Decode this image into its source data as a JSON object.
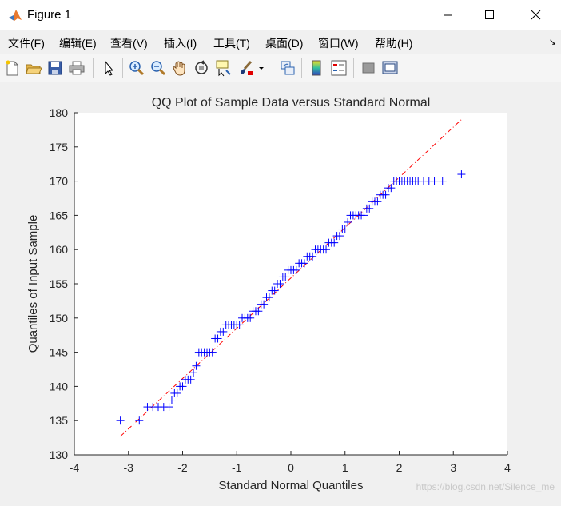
{
  "window": {
    "title": "Figure 1"
  },
  "menu": [
    "文件(F)",
    "编辑(E)",
    "查看(V)",
    "插入(I)",
    "工具(T)",
    "桌面(D)",
    "窗口(W)",
    "帮助(H)"
  ],
  "toolbar_icons": [
    "new-figure-icon",
    "open-file-icon",
    "save-icon",
    "print-icon",
    "pointer-icon",
    "zoom-in-icon",
    "zoom-out-icon",
    "pan-icon",
    "rotate-3d-icon",
    "data-cursor-icon",
    "brush-icon",
    "brush-dropdown-icon",
    "link-plot-icon",
    "colorbar-icon",
    "legend-icon",
    "hide-plot-tools-icon",
    "show-plot-tools-icon"
  ],
  "watermark": "https://blog.csdn.net/Silence_me",
  "colors": {
    "markers": "#0000ff",
    "reference_line": "#ff0000",
    "axes_bg": "#ffffff",
    "figure_bg": "#f0f0f0"
  },
  "chart_data": {
    "type": "scatter",
    "title": "QQ Plot of Sample Data versus Standard Normal",
    "xlabel": "Standard Normal Quantiles",
    "ylabel": "Quantiles of Input Sample",
    "xlim": [
      -4,
      4
    ],
    "ylim": [
      130,
      180
    ],
    "xticks": [
      "-4",
      "-3",
      "-2",
      "-1",
      "0",
      "1",
      "2",
      "3",
      "4"
    ],
    "yticks": [
      "130",
      "135",
      "140",
      "145",
      "150",
      "155",
      "160",
      "165",
      "170",
      "175",
      "180"
    ],
    "marker": "+",
    "grid": false,
    "reference_line": {
      "style": "dash-dot",
      "x": [
        -3.15,
        3.15
      ],
      "y": [
        132.7,
        179
      ]
    },
    "series": [
      {
        "values": [
          [
            -3.15,
            135
          ],
          [
            -2.8,
            135
          ],
          [
            -2.65,
            137
          ],
          [
            -2.55,
            137
          ],
          [
            -2.45,
            137
          ],
          [
            -2.35,
            137
          ],
          [
            -2.25,
            137
          ],
          [
            -2.2,
            138
          ],
          [
            -2.15,
            139
          ],
          [
            -2.1,
            139
          ],
          [
            -2.05,
            140
          ],
          [
            -2.0,
            140
          ],
          [
            -1.95,
            141
          ],
          [
            -1.9,
            141
          ],
          [
            -1.85,
            141
          ],
          [
            -1.8,
            142
          ],
          [
            -1.75,
            143
          ],
          [
            -1.7,
            145
          ],
          [
            -1.65,
            145
          ],
          [
            -1.6,
            145
          ],
          [
            -1.55,
            145
          ],
          [
            -1.5,
            145
          ],
          [
            -1.45,
            145
          ],
          [
            -1.4,
            147
          ],
          [
            -1.35,
            147
          ],
          [
            -1.3,
            148
          ],
          [
            -1.25,
            148
          ],
          [
            -1.2,
            149
          ],
          [
            -1.15,
            149
          ],
          [
            -1.1,
            149
          ],
          [
            -1.05,
            149
          ],
          [
            -1.0,
            149
          ],
          [
            -0.95,
            149
          ],
          [
            -0.9,
            150
          ],
          [
            -0.85,
            150
          ],
          [
            -0.8,
            150
          ],
          [
            -0.75,
            150
          ],
          [
            -0.7,
            151
          ],
          [
            -0.65,
            151
          ],
          [
            -0.6,
            151
          ],
          [
            -0.55,
            152
          ],
          [
            -0.5,
            152
          ],
          [
            -0.45,
            153
          ],
          [
            -0.4,
            153
          ],
          [
            -0.35,
            154
          ],
          [
            -0.3,
            154
          ],
          [
            -0.25,
            155
          ],
          [
            -0.2,
            155
          ],
          [
            -0.15,
            156
          ],
          [
            -0.1,
            156
          ],
          [
            -0.05,
            157
          ],
          [
            0.0,
            157
          ],
          [
            0.05,
            157
          ],
          [
            0.1,
            157
          ],
          [
            0.15,
            158
          ],
          [
            0.2,
            158
          ],
          [
            0.25,
            158
          ],
          [
            0.3,
            159
          ],
          [
            0.35,
            159
          ],
          [
            0.4,
            159
          ],
          [
            0.45,
            160
          ],
          [
            0.5,
            160
          ],
          [
            0.55,
            160
          ],
          [
            0.6,
            160
          ],
          [
            0.65,
            160
          ],
          [
            0.7,
            161
          ],
          [
            0.75,
            161
          ],
          [
            0.8,
            161
          ],
          [
            0.85,
            162
          ],
          [
            0.9,
            162
          ],
          [
            0.95,
            163
          ],
          [
            1.0,
            163
          ],
          [
            1.05,
            164
          ],
          [
            1.1,
            165
          ],
          [
            1.15,
            165
          ],
          [
            1.2,
            165
          ],
          [
            1.25,
            165
          ],
          [
            1.3,
            165
          ],
          [
            1.35,
            165
          ],
          [
            1.4,
            166
          ],
          [
            1.45,
            166
          ],
          [
            1.5,
            167
          ],
          [
            1.55,
            167
          ],
          [
            1.6,
            167
          ],
          [
            1.65,
            168
          ],
          [
            1.7,
            168
          ],
          [
            1.75,
            168
          ],
          [
            1.8,
            169
          ],
          [
            1.85,
            169
          ],
          [
            1.9,
            170
          ],
          [
            1.95,
            170
          ],
          [
            2.0,
            170
          ],
          [
            2.05,
            170
          ],
          [
            2.1,
            170
          ],
          [
            2.15,
            170
          ],
          [
            2.2,
            170
          ],
          [
            2.25,
            170
          ],
          [
            2.3,
            170
          ],
          [
            2.35,
            170
          ],
          [
            2.45,
            170
          ],
          [
            2.55,
            170
          ],
          [
            2.65,
            170
          ],
          [
            2.8,
            170
          ],
          [
            3.15,
            171
          ]
        ]
      }
    ]
  }
}
